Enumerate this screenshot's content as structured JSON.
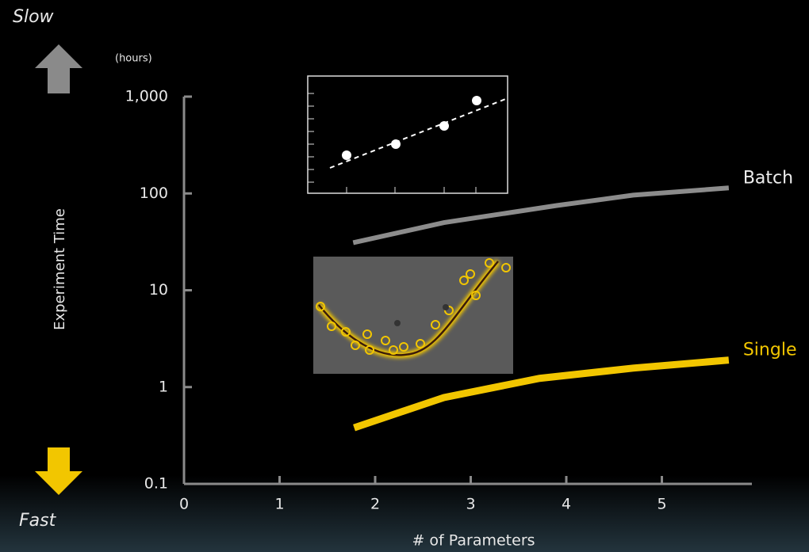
{
  "chart_data": {
    "type": "line",
    "top_label": "Slow",
    "bottom_label": "Fast",
    "unit_label": "(hours)",
    "y_label": "Experiment Time",
    "x_label": "# of Parameters",
    "xlim": [
      0,
      6
    ],
    "xticks": [
      0,
      1,
      2,
      3,
      4,
      5
    ],
    "ylim": [
      0.1,
      1000
    ],
    "yscale": "log",
    "yticks": [
      0.1,
      1,
      10,
      100,
      {
        "value": 1000,
        "label": "1,000"
      }
    ],
    "series": [
      {
        "name": "Batch",
        "color": "#8c8c8c",
        "x": [
          1.77,
          2.72,
          3.9,
          4.7,
          5.7
        ],
        "values": [
          31,
          50,
          75,
          96,
          114
        ]
      },
      {
        "name": "Single",
        "color": "#f2c600",
        "x": [
          1.78,
          2.72,
          3.72,
          4.7,
          5.7
        ],
        "values": [
          0.38,
          0.78,
          1.23,
          1.57,
          1.9
        ]
      }
    ]
  }
}
